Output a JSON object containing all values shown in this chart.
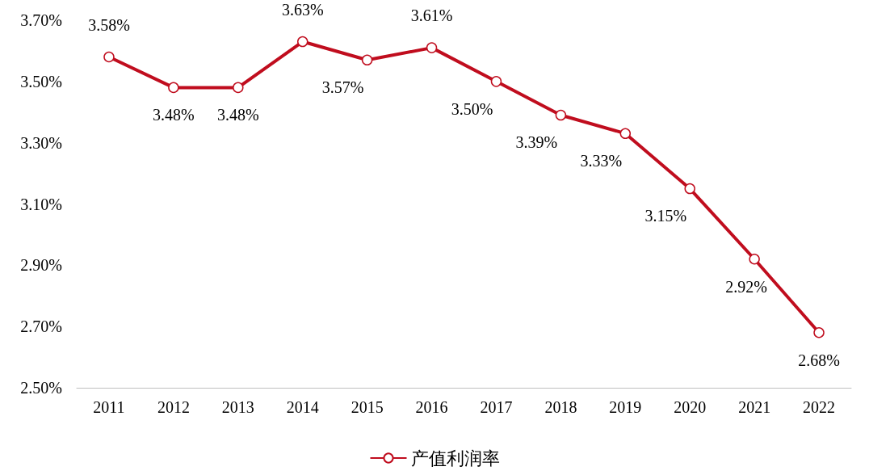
{
  "chart_data": {
    "type": "line",
    "categories": [
      "2011",
      "2012",
      "2013",
      "2014",
      "2015",
      "2016",
      "2017",
      "2018",
      "2019",
      "2020",
      "2021",
      "2022"
    ],
    "series": [
      {
        "name": "产值利润率",
        "color": "#c00d1e",
        "values": [
          3.58,
          3.48,
          3.48,
          3.63,
          3.57,
          3.61,
          3.5,
          3.39,
          3.33,
          3.15,
          2.92,
          2.68
        ],
        "value_labels": [
          "3.58%",
          "3.48%",
          "3.48%",
          "3.63%",
          "3.57%",
          "3.61%",
          "3.50%",
          "3.39%",
          "3.33%",
          "3.15%",
          "2.92%",
          "2.68%"
        ]
      }
    ],
    "ylim": [
      2.5,
      3.7
    ],
    "yticks": [
      {
        "value": 2.5,
        "label": "2.50%"
      },
      {
        "value": 2.7,
        "label": "2.70%"
      },
      {
        "value": 2.9,
        "label": "2.90%"
      },
      {
        "value": 3.1,
        "label": "3.10%"
      },
      {
        "value": 3.3,
        "label": "3.30%"
      },
      {
        "value": 3.5,
        "label": "3.50%"
      },
      {
        "value": 3.7,
        "label": "3.70%"
      }
    ],
    "grid": false,
    "legend": "bottom",
    "marker": "circle",
    "line_style": "solid"
  }
}
